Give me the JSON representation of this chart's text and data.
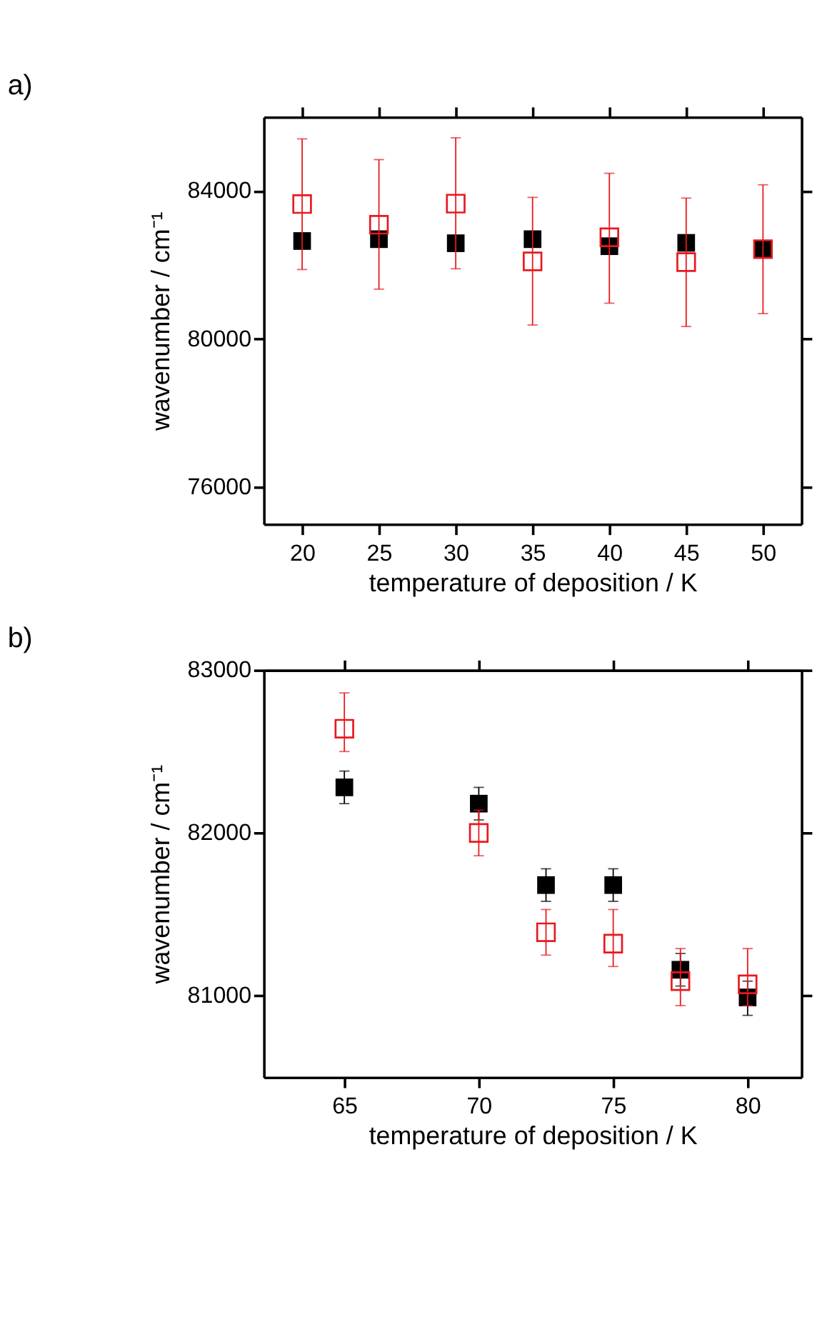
{
  "chart_data": [
    {
      "type": "scatter",
      "title": "a)",
      "xlabel": "temperature of deposition / K",
      "ylabel": "wavenumber / cm⁻¹",
      "xlim": [
        17.5,
        52.5
      ],
      "xticks": [
        20,
        25,
        30,
        35,
        40,
        45,
        50
      ],
      "ylim": [
        75000,
        86000
      ],
      "yticks": [
        76000,
        80000,
        84000
      ],
      "marker": "square",
      "grid": false,
      "series": [
        {
          "color": "#000000",
          "x": [
            20,
            25,
            30,
            35,
            40,
            45,
            50
          ],
          "values": [
            82650,
            82700,
            82590,
            82700,
            82510,
            82600,
            82430
          ]
        },
        {
          "color": "#e8191e",
          "x": [
            20,
            25,
            30,
            35,
            40,
            45,
            50
          ],
          "values": [
            83650,
            83090,
            83660,
            82100,
            82750,
            82080,
            82430
          ],
          "errors": [
            [
              81880,
              85410
            ],
            [
              81350,
              84850
            ],
            [
              81900,
              85440
            ],
            [
              80380,
              83830
            ],
            [
              80970,
              84480
            ],
            [
              80340,
              83810
            ],
            [
              80690,
              84170
            ]
          ]
        }
      ]
    },
    {
      "type": "scatter",
      "title": "b)",
      "xlabel": "temperature of deposition / K",
      "ylabel": "wavenumber / cm⁻¹",
      "xlim": [
        62,
        82
      ],
      "xticks": [
        65,
        70,
        75,
        80
      ],
      "ylim": [
        80500,
        83000
      ],
      "yticks": [
        81000,
        82000,
        83000
      ],
      "marker": "square",
      "grid": false,
      "series": [
        {
          "color": "#000000",
          "x": [
            65,
            70,
            72.5,
            75,
            77.5,
            80
          ],
          "values": [
            82280,
            82180,
            81680,
            81680,
            81160,
            80990
          ],
          "errors": [
            [
              82180,
              82380
            ],
            [
              82080,
              82280
            ],
            [
              81580,
              81780
            ],
            [
              81580,
              81780
            ],
            [
              81060,
              81260
            ],
            [
              80880,
              81090
            ]
          ]
        },
        {
          "color": "#e8191e",
          "x": [
            65,
            70,
            72.5,
            75,
            77.5,
            80
          ],
          "values": [
            82640,
            82000,
            81390,
            81320,
            81090,
            81070
          ],
          "errors": [
            [
              82500,
              82860
            ],
            [
              81860,
              82140
            ],
            [
              81250,
              81530
            ],
            [
              81180,
              81530
            ],
            [
              80940,
              81290
            ],
            [
              80940,
              81290
            ]
          ]
        }
      ]
    }
  ]
}
